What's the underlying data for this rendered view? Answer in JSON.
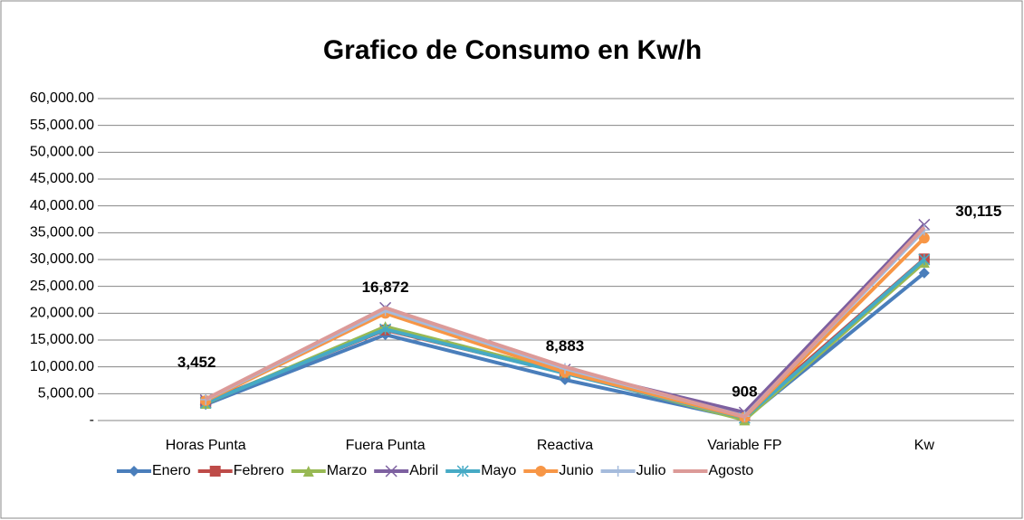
{
  "chart_data": {
    "type": "line",
    "title": "Grafico de Consumo en Kw/h",
    "categories": [
      "Horas Punta",
      "Fuera Punta",
      "Reactiva",
      "Variable FP",
      "Kw"
    ],
    "series": [
      {
        "name": "Enero",
        "color": "#4a7ebb",
        "marker": "diamond",
        "values": [
          3000,
          16000,
          7600,
          300,
          27500
        ]
      },
      {
        "name": "Febrero",
        "color": "#be4b48",
        "marker": "square",
        "values": [
          3452,
          16872,
          8883,
          908,
          30115
        ],
        "value_labels": [
          "3,452",
          "16,872",
          "8,883",
          "908",
          "30,115"
        ]
      },
      {
        "name": "Marzo",
        "color": "#98b954",
        "marker": "triangle",
        "values": [
          3200,
          17500,
          9000,
          100,
          29500
        ]
      },
      {
        "name": "Abril",
        "color": "#7d60a0",
        "marker": "x",
        "values": [
          3800,
          21000,
          9500,
          1500,
          36500
        ]
      },
      {
        "name": "Mayo",
        "color": "#46aac5",
        "marker": "star",
        "values": [
          3300,
          17000,
          8800,
          500,
          30000
        ]
      },
      {
        "name": "Junio",
        "color": "#f79646",
        "marker": "circle",
        "values": [
          3700,
          20000,
          9000,
          600,
          34000
        ]
      },
      {
        "name": "Julio",
        "color": "#a5bbdc",
        "marker": "plus",
        "values": [
          3900,
          20500,
          9700,
          800,
          35500
        ]
      },
      {
        "name": "Agosto",
        "color": "#dc9a98",
        "marker": "none",
        "values": [
          4000,
          21000,
          10000,
          700,
          36000
        ]
      }
    ],
    "ylim": [
      0,
      60000
    ],
    "yticks": [
      {
        "value": 0,
        "label": "-"
      },
      {
        "value": 5000,
        "label": "5,000.00"
      },
      {
        "value": 10000,
        "label": "10,000.00"
      },
      {
        "value": 15000,
        "label": "15,000.00"
      },
      {
        "value": 20000,
        "label": "20,000.00"
      },
      {
        "value": 25000,
        "label": "25,000.00"
      },
      {
        "value": 30000,
        "label": "30,000.00"
      },
      {
        "value": 35000,
        "label": "35,000.00"
      },
      {
        "value": 40000,
        "label": "40,000.00"
      },
      {
        "value": 45000,
        "label": "45,000.00"
      },
      {
        "value": 50000,
        "label": "50,000.00"
      },
      {
        "value": 55000,
        "label": "55,000.00"
      },
      {
        "value": 60000,
        "label": "60,000.00"
      }
    ],
    "grid": true,
    "legend": "bottom"
  }
}
